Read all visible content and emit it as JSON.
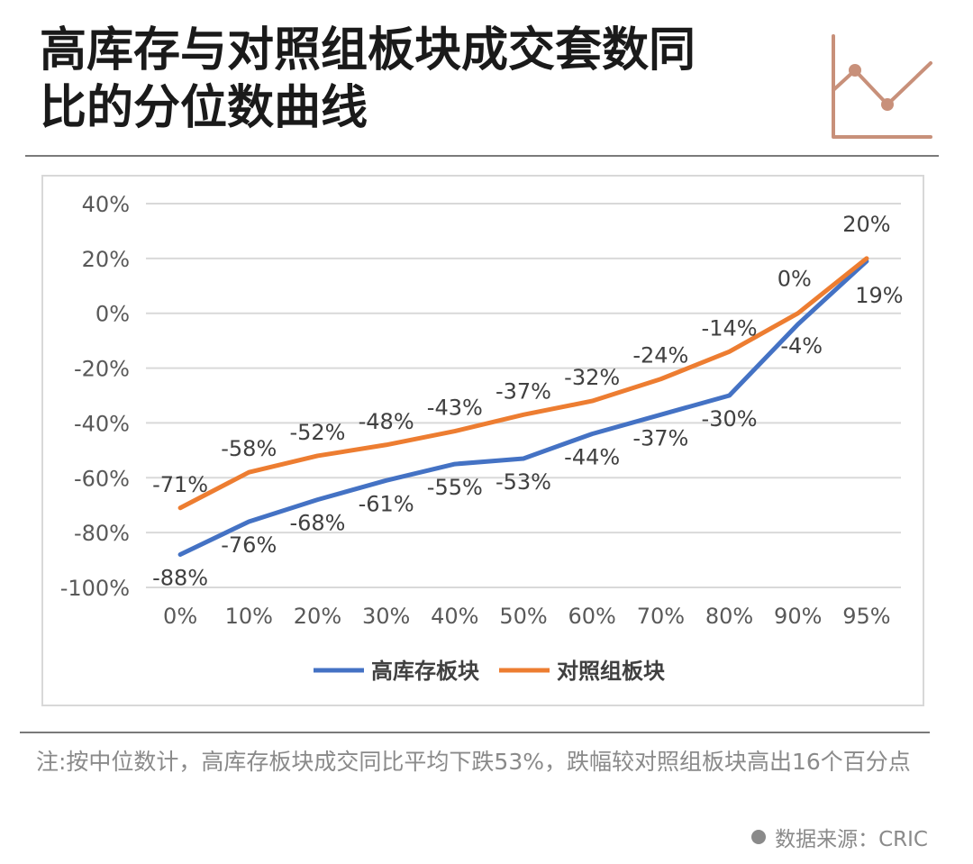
{
  "header": {
    "title_line1": "高库存与对照组板块成交套数同",
    "title_line2": "比的分位数曲线",
    "icon": "line-chart-icon",
    "icon_color": "#c8907a"
  },
  "chart_data": {
    "type": "line",
    "categories": [
      "0%",
      "10%",
      "20%",
      "30%",
      "40%",
      "50%",
      "60%",
      "70%",
      "80%",
      "90%",
      "95%"
    ],
    "series": [
      {
        "name": "高库存板块",
        "color": "#4472c4",
        "values": [
          -88,
          -76,
          -68,
          -61,
          -55,
          -53,
          -44,
          -37,
          -30,
          -4,
          19
        ],
        "labels": [
          "-88%",
          "-76%",
          "-68%",
          "-61%",
          "-55%",
          "-53%",
          "-44%",
          "-37%",
          "-30%",
          "-4%",
          "19%"
        ]
      },
      {
        "name": "对照组板块",
        "color": "#ed7d31",
        "values": [
          -71,
          -58,
          -52,
          -48,
          -43,
          -37,
          -32,
          -24,
          -14,
          0,
          20
        ],
        "labels": [
          "-71%",
          "-58%",
          "-52%",
          "-48%",
          "-43%",
          "-37%",
          "-32%",
          "-24%",
          "-14%",
          "0%",
          "20%"
        ]
      }
    ],
    "yticks": [
      "40%",
      "20%",
      "0%",
      "-20%",
      "-40%",
      "-60%",
      "-80%",
      "-100%"
    ],
    "ylim": [
      -100,
      40
    ],
    "grid": true,
    "legend": "bottom"
  },
  "footer": {
    "note": "注:按中位数计，高库存板块成交同比平均下跌53%，跌幅较对照组板块高出16个百分点",
    "source": "数据来源：CRIC"
  }
}
